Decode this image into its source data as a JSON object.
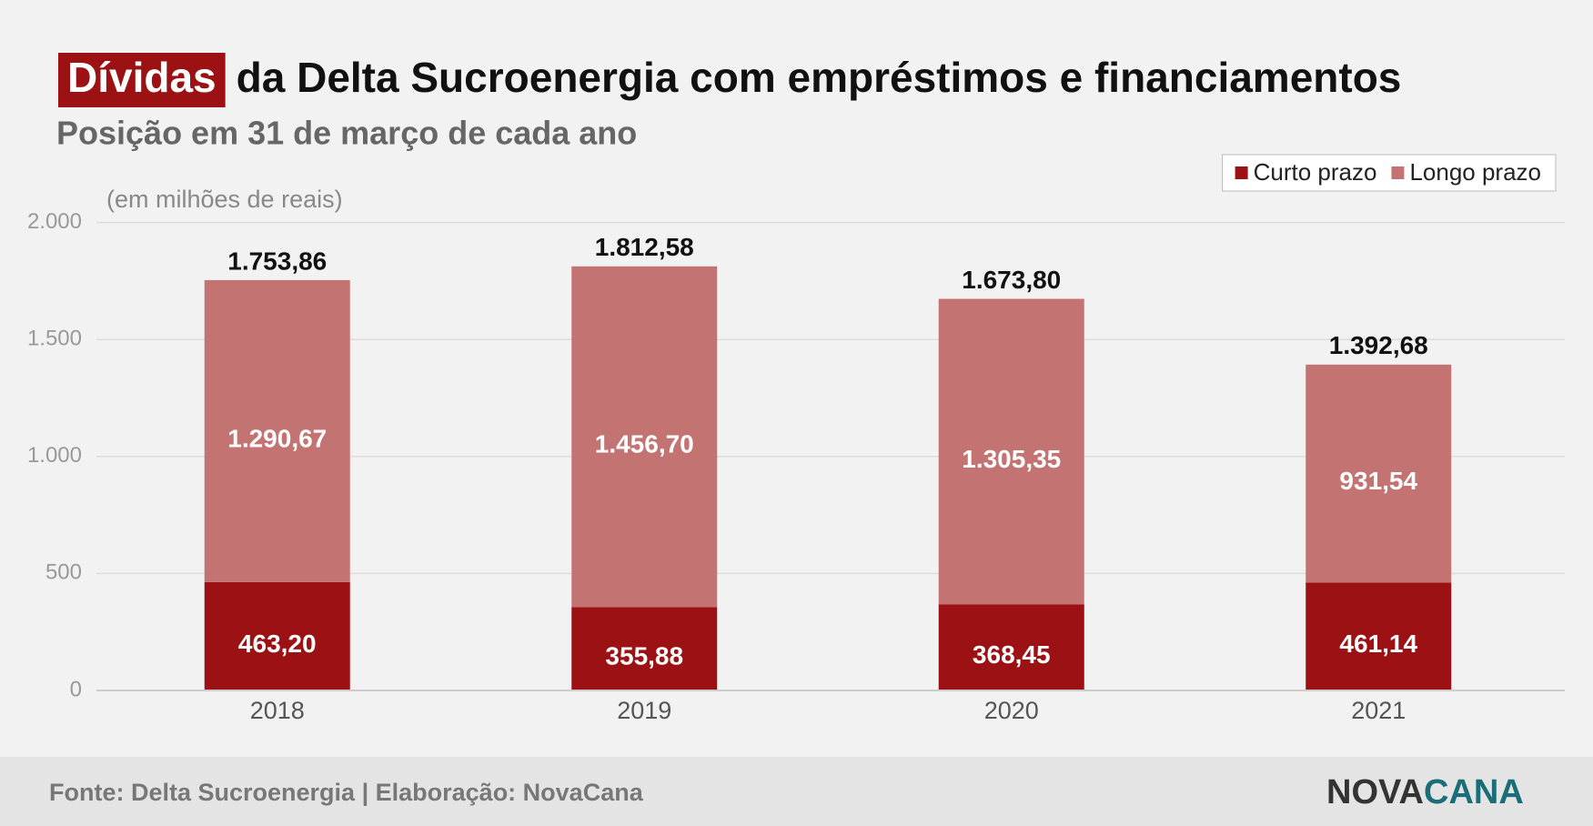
{
  "chart_data": {
    "type": "stacked_bar",
    "title": {
      "highlight": "Dívidas",
      "text": "da Delta Sucroenergia com empréstimos e financiamentos"
    },
    "subtitle": "Posição em 31 de março de cada ano",
    "y_axis_label": "(em milhões de reais)",
    "categories": [
      "2018",
      "2019",
      "2020",
      "2021"
    ],
    "series": [
      {
        "name": "Curto prazo",
        "color": "#9b1114",
        "values": [
          463.2,
          355.88,
          368.45,
          461.14
        ],
        "value_labels": [
          "463,20",
          "355,88",
          "368,45",
          "461,14"
        ]
      },
      {
        "name": "Longo prazo",
        "color": "#c47373",
        "values": [
          1290.67,
          1456.7,
          1305.35,
          931.54
        ],
        "value_labels": [
          "1.290,67",
          "1.456,70",
          "1.305,35",
          "931,54"
        ]
      }
    ],
    "totals": {
      "values": [
        1753.86,
        1812.58,
        1673.8,
        1392.68
      ],
      "value_labels": [
        "1.753,86",
        "1.812,58",
        "1.673,80",
        "1.392,68"
      ]
    },
    "ylim": [
      0,
      2000
    ],
    "yticks": [
      0,
      500,
      {
        "value": 1000,
        "label": "1.000"
      },
      {
        "value": 1500,
        "label": "1.500"
      },
      {
        "value": 2000,
        "label": "2.000"
      }
    ],
    "grid": true,
    "legend": "top-right",
    "source": "Fonte: Delta Sucroenergia | Elaboração: NovaCana",
    "logo": {
      "first": "NOVA",
      "second": "CANA"
    }
  }
}
